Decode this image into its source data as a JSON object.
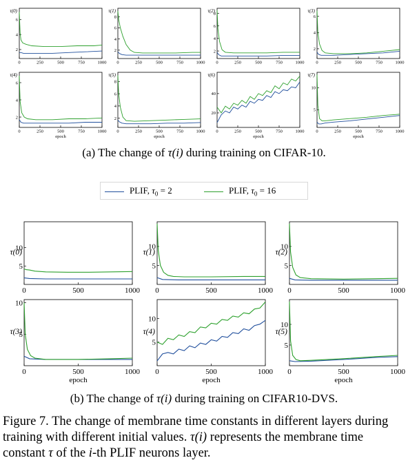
{
  "legend": [
    {
      "name": "PLIF, τ₀ = 2",
      "prefix": "PLIF, ",
      "symbol": "τ",
      "suffix": "0",
      "rest": " = 2",
      "color": "#1f4e9c"
    },
    {
      "name": "PLIF, τ₀ = 16",
      "prefix": "PLIF, ",
      "symbol": "τ",
      "suffix": "0",
      "rest": " = 16",
      "color": "#2ca02c"
    }
  ],
  "captions": {
    "a_prefix": "(a) The change of ",
    "a_symbol": "τ(i)",
    "a_suffix": " during training on CIFAR-10.",
    "b_prefix": "(b) The change of ",
    "b_symbol": "τ(i)",
    "b_suffix": " during training on CIFAR10-DVS.",
    "figure_part1": "Figure 7. The change of membrane time constants in different layers during training with different initial values. ",
    "figure_symbol1": "τ(i)",
    "figure_part2": " represents the membrane time constant ",
    "figure_symbol2": "τ",
    "figure_part3": " of the ",
    "figure_symbol3": "i",
    "figure_part4": "-th PLIF neurons layer."
  },
  "chart_data": [
    {
      "type": "line",
      "panel": "cifar10",
      "title": "τ(0)",
      "xlabel": "",
      "xlim": [
        0,
        1000
      ],
      "ylim": [
        0.8,
        7.5
      ],
      "xticks": [
        0,
        250,
        500,
        750,
        1000
      ],
      "yticks": [
        2,
        4,
        6
      ],
      "series": [
        {
          "name": "PLIF, τ₀ = 2",
          "x": [
            0,
            20,
            50,
            100,
            200,
            400,
            600,
            800,
            1000
          ],
          "y": [
            1.6,
            1.6,
            1.5,
            1.5,
            1.5,
            1.5,
            1.6,
            1.7,
            1.8
          ]
        },
        {
          "name": "PLIF, τ₀ = 16",
          "x": [
            0,
            10,
            20,
            40,
            80,
            150,
            300,
            500,
            700,
            900,
            1000
          ],
          "y": [
            7.0,
            4.2,
            3.3,
            2.9,
            2.7,
            2.5,
            2.4,
            2.4,
            2.5,
            2.5,
            2.6
          ]
        }
      ]
    },
    {
      "type": "line",
      "panel": "cifar10",
      "title": "τ(1)",
      "xlabel": "",
      "xlim": [
        0,
        1000
      ],
      "ylim": [
        0.5,
        9.5
      ],
      "xticks": [
        0,
        250,
        500,
        750,
        1000
      ],
      "yticks": [
        2,
        4,
        6,
        8
      ],
      "series": [
        {
          "name": "PLIF, τ₀ = 2",
          "x": [
            0,
            20,
            50,
            100,
            200,
            400,
            600,
            800,
            1000
          ],
          "y": [
            1.7,
            1.4,
            1.2,
            1.1,
            1.1,
            1.1,
            1.1,
            1.1,
            1.1
          ]
        },
        {
          "name": "PLIF, τ₀ = 16",
          "x": [
            0,
            10,
            30,
            60,
            100,
            150,
            200,
            300,
            500,
            700,
            900,
            1000
          ],
          "y": [
            9.0,
            7.5,
            6.0,
            4.5,
            3.0,
            2.0,
            1.6,
            1.5,
            1.5,
            1.5,
            1.6,
            1.6
          ]
        }
      ]
    },
    {
      "type": "line",
      "panel": "cifar10",
      "title": "τ(2)",
      "xlabel": "",
      "xlim": [
        0,
        1000
      ],
      "ylim": [
        0.8,
        8.8
      ],
      "xticks": [
        0,
        250,
        500,
        750,
        1000
      ],
      "yticks": [
        2,
        4,
        6,
        8
      ],
      "series": [
        {
          "name": "PLIF, τ₀ = 2",
          "x": [
            0,
            20,
            50,
            100,
            200,
            400,
            600,
            800,
            1000
          ],
          "y": [
            1.8,
            1.4,
            1.2,
            1.2,
            1.2,
            1.2,
            1.2,
            1.3,
            1.3
          ]
        },
        {
          "name": "PLIF, τ₀ = 16",
          "x": [
            0,
            10,
            30,
            60,
            100,
            200,
            400,
            600,
            800,
            1000
          ],
          "y": [
            8.5,
            5.5,
            3.5,
            2.2,
            1.8,
            1.7,
            1.7,
            1.7,
            1.8,
            1.8
          ]
        }
      ]
    },
    {
      "type": "line",
      "panel": "cifar10",
      "title": "τ(3)",
      "xlabel": "",
      "xlim": [
        0,
        1000
      ],
      "ylim": [
        0.8,
        7.0
      ],
      "xticks": [
        0,
        250,
        500,
        750,
        1000
      ],
      "yticks": [
        2,
        4,
        6
      ],
      "series": [
        {
          "name": "PLIF, τ₀ = 2",
          "x": [
            0,
            20,
            50,
            100,
            200,
            400,
            600,
            800,
            1000
          ],
          "y": [
            1.6,
            1.3,
            1.2,
            1.2,
            1.2,
            1.3,
            1.4,
            1.5,
            1.7
          ]
        },
        {
          "name": "PLIF, τ₀ = 16",
          "x": [
            0,
            10,
            30,
            60,
            100,
            200,
            400,
            600,
            800,
            1000
          ],
          "y": [
            6.7,
            4.0,
            2.6,
            1.8,
            1.5,
            1.4,
            1.4,
            1.5,
            1.7,
            1.9
          ]
        }
      ]
    },
    {
      "type": "line",
      "panel": "cifar10",
      "title": "τ(4)",
      "xlabel": "epoch",
      "xlim": [
        0,
        1000
      ],
      "ylim": [
        0.8,
        7.2
      ],
      "xticks": [
        0,
        250,
        500,
        750,
        1000
      ],
      "yticks": [
        2,
        4,
        6
      ],
      "series": [
        {
          "name": "PLIF, τ₀ = 2",
          "x": [
            0,
            20,
            50,
            100,
            200,
            400,
            600,
            800,
            1000
          ],
          "y": [
            1.7,
            1.4,
            1.3,
            1.3,
            1.3,
            1.3,
            1.3,
            1.4,
            1.4
          ]
        },
        {
          "name": "PLIF, τ₀ = 16",
          "x": [
            0,
            10,
            30,
            60,
            100,
            200,
            400,
            600,
            800,
            1000
          ],
          "y": [
            6.8,
            3.8,
            2.5,
            2.0,
            1.8,
            1.7,
            1.7,
            1.8,
            1.8,
            1.9
          ]
        }
      ]
    },
    {
      "type": "line",
      "panel": "cifar10",
      "title": "τ(5)",
      "xlabel": "epoch",
      "xlim": [
        0,
        1000
      ],
      "ylim": [
        0.5,
        9.5
      ],
      "xticks": [
        0,
        250,
        500,
        750,
        1000
      ],
      "yticks": [
        2,
        4,
        6,
        8
      ],
      "series": [
        {
          "name": "PLIF, τ₀ = 2",
          "x": [
            0,
            20,
            50,
            100,
            200,
            400,
            600,
            800,
            1000
          ],
          "y": [
            1.7,
            1.4,
            1.2,
            1.1,
            1.1,
            1.1,
            1.2,
            1.2,
            1.3
          ]
        },
        {
          "name": "PLIF, τ₀ = 16",
          "x": [
            0,
            10,
            30,
            60,
            100,
            200,
            400,
            600,
            800,
            1000
          ],
          "y": [
            9.0,
            6.0,
            3.8,
            2.2,
            1.6,
            1.5,
            1.6,
            1.7,
            1.8,
            1.9
          ]
        }
      ]
    },
    {
      "type": "line",
      "panel": "cifar10",
      "title": "τ(6)",
      "xlabel": "epoch",
      "xlim": [
        0,
        1000
      ],
      "ylim": [
        5,
        62
      ],
      "xticks": [
        0,
        250,
        500,
        750,
        1000
      ],
      "yticks": [
        20,
        40
      ],
      "series": [
        {
          "name": "PLIF, τ₀ = 2",
          "x": [
            0,
            50,
            100,
            150,
            200,
            250,
            300,
            350,
            400,
            450,
            500,
            550,
            600,
            650,
            700,
            750,
            800,
            850,
            900,
            950,
            1000
          ],
          "y": [
            10,
            18,
            22,
            20,
            26,
            24,
            28,
            26,
            32,
            30,
            34,
            33,
            38,
            36,
            42,
            40,
            44,
            43,
            47,
            46,
            52
          ]
        },
        {
          "name": "PLIF, τ₀ = 16",
          "x": [
            0,
            50,
            100,
            150,
            200,
            250,
            300,
            350,
            400,
            450,
            500,
            550,
            600,
            650,
            700,
            750,
            800,
            850,
            900,
            950,
            1000
          ],
          "y": [
            26,
            20,
            27,
            24,
            30,
            28,
            33,
            30,
            37,
            34,
            40,
            38,
            43,
            41,
            48,
            45,
            51,
            49,
            55,
            53,
            58
          ]
        }
      ]
    },
    {
      "type": "line",
      "panel": "cifar10",
      "title": "τ(7)",
      "xlabel": "epoch",
      "xlim": [
        0,
        1000
      ],
      "ylim": [
        1,
        13.5
      ],
      "xticks": [
        0,
        250,
        500,
        750,
        1000
      ],
      "yticks": [
        5,
        10
      ],
      "series": [
        {
          "name": "PLIF, τ₀ = 2",
          "x": [
            0,
            20,
            50,
            100,
            200,
            400,
            600,
            800,
            1000
          ],
          "y": [
            2.2,
            1.8,
            1.8,
            2.0,
            2.2,
            2.5,
            2.9,
            3.3,
            3.7
          ]
        },
        {
          "name": "PLIF, τ₀ = 16",
          "x": [
            0,
            10,
            30,
            60,
            100,
            200,
            400,
            600,
            800,
            1000
          ],
          "y": [
            13.0,
            6.0,
            3.0,
            2.5,
            2.5,
            2.7,
            3.0,
            3.3,
            3.7,
            4.0
          ]
        }
      ]
    },
    {
      "type": "line",
      "panel": "dvs",
      "title": "τ(0)",
      "xlabel": "",
      "xlim": [
        0,
        1000
      ],
      "ylim": [
        0,
        17
      ],
      "xticks": [
        0,
        500,
        1000
      ],
      "yticks": [
        5,
        10
      ],
      "series": [
        {
          "name": "PLIF, τ₀ = 2",
          "x": [
            0,
            50,
            200,
            500,
            800,
            1000
          ],
          "y": [
            1.8,
            1.6,
            1.5,
            1.5,
            1.5,
            1.5
          ]
        },
        {
          "name": "PLIF, τ₀ = 16",
          "x": [
            0,
            20,
            50,
            100,
            200,
            400,
            600,
            800,
            1000
          ],
          "y": [
            4.2,
            4.0,
            3.9,
            3.6,
            3.4,
            3.3,
            3.3,
            3.4,
            3.5
          ]
        }
      ]
    },
    {
      "type": "line",
      "panel": "dvs",
      "title": "τ(1)",
      "xlabel": "",
      "xlim": [
        0,
        1000
      ],
      "ylim": [
        0,
        16.5
      ],
      "xticks": [
        0,
        500,
        1000
      ],
      "yticks": [
        5,
        10
      ],
      "series": [
        {
          "name": "PLIF, τ₀ = 2",
          "x": [
            0,
            50,
            200,
            500,
            800,
            1000
          ],
          "y": [
            1.8,
            1.3,
            1.2,
            1.2,
            1.2,
            1.2
          ]
        },
        {
          "name": "PLIF, τ₀ = 16",
          "x": [
            0,
            10,
            30,
            60,
            100,
            150,
            250,
            500,
            800,
            1000
          ],
          "y": [
            16.0,
            9.0,
            5.0,
            3.2,
            2.4,
            2.1,
            2.0,
            2.0,
            2.1,
            2.1
          ]
        }
      ]
    },
    {
      "type": "line",
      "panel": "dvs",
      "title": "τ(2)",
      "xlabel": "",
      "xlim": [
        0,
        1000
      ],
      "ylim": [
        0,
        16.5
      ],
      "xticks": [
        0,
        500,
        1000
      ],
      "yticks": [
        5,
        10
      ],
      "series": [
        {
          "name": "PLIF, τ₀ = 2",
          "x": [
            0,
            50,
            200,
            500,
            800,
            1000
          ],
          "y": [
            1.6,
            1.2,
            1.1,
            1.1,
            1.1,
            1.1
          ]
        },
        {
          "name": "PLIF, τ₀ = 16",
          "x": [
            0,
            10,
            30,
            60,
            100,
            200,
            500,
            800,
            1000
          ],
          "y": [
            16.0,
            8.5,
            4.5,
            2.5,
            1.8,
            1.5,
            1.4,
            1.5,
            1.6
          ]
        }
      ]
    },
    {
      "type": "line",
      "panel": "dvs",
      "title": "τ(3)",
      "xlabel": "epoch",
      "xlim": [
        0,
        1000
      ],
      "ylim": [
        0,
        10.5
      ],
      "xticks": [
        0,
        500,
        1000
      ],
      "yticks": [
        5,
        10
      ],
      "series": [
        {
          "name": "PLIF, τ₀ = 2",
          "x": [
            0,
            50,
            200,
            500,
            800,
            1000
          ],
          "y": [
            1.5,
            1.1,
            1.0,
            1.0,
            1.0,
            1.0
          ]
        },
        {
          "name": "PLIF, τ₀ = 16",
          "x": [
            0,
            10,
            30,
            60,
            100,
            200,
            500,
            800,
            1000
          ],
          "y": [
            10.0,
            5.0,
            2.6,
            1.6,
            1.2,
            1.0,
            1.0,
            1.1,
            1.2
          ]
        }
      ]
    },
    {
      "type": "line",
      "panel": "dvs",
      "title": "τ(4)",
      "xlabel": "epoch",
      "xlim": [
        0,
        1000
      ],
      "ylim": [
        0,
        14
      ],
      "xticks": [
        0,
        500,
        1000
      ],
      "yticks": [
        5,
        10
      ],
      "series": [
        {
          "name": "PLIF, τ₀ = 2",
          "x": [
            0,
            50,
            100,
            150,
            200,
            250,
            300,
            350,
            400,
            450,
            500,
            550,
            600,
            650,
            700,
            750,
            800,
            850,
            900,
            950,
            1000
          ],
          "y": [
            1.0,
            2.5,
            2.8,
            2.5,
            3.5,
            3.2,
            4.2,
            3.8,
            4.8,
            4.5,
            5.5,
            5.2,
            6.2,
            6.0,
            7.0,
            6.8,
            7.8,
            7.5,
            8.5,
            8.8,
            9.6
          ]
        },
        {
          "name": "PLIF, τ₀ = 16",
          "x": [
            0,
            50,
            100,
            150,
            200,
            250,
            300,
            350,
            400,
            450,
            500,
            550,
            600,
            650,
            700,
            750,
            800,
            850,
            900,
            950,
            1000
          ],
          "y": [
            5.0,
            4.5,
            5.8,
            5.5,
            6.5,
            6.2,
            7.2,
            7.0,
            8.2,
            8.0,
            9.0,
            8.8,
            9.8,
            9.6,
            10.5,
            10.3,
            11.2,
            11.0,
            12.0,
            12.2,
            13.5
          ]
        }
      ]
    },
    {
      "type": "line",
      "panel": "dvs",
      "title": "τ(5)",
      "xlabel": "epoch",
      "xlim": [
        0,
        1000
      ],
      "ylim": [
        0,
        16
      ],
      "xticks": [
        0,
        500,
        1000
      ],
      "yticks": [
        5,
        10
      ],
      "series": [
        {
          "name": "PLIF, τ₀ = 2",
          "x": [
            0,
            50,
            200,
            500,
            800,
            1000
          ],
          "y": [
            1.2,
            1.0,
            1.1,
            1.5,
            2.0,
            2.2
          ]
        },
        {
          "name": "PLIF, τ₀ = 16",
          "x": [
            0,
            10,
            30,
            60,
            100,
            200,
            500,
            800,
            1000
          ],
          "y": [
            15.5,
            6.0,
            2.5,
            1.5,
            1.2,
            1.3,
            1.7,
            2.2,
            2.5
          ]
        }
      ]
    }
  ]
}
